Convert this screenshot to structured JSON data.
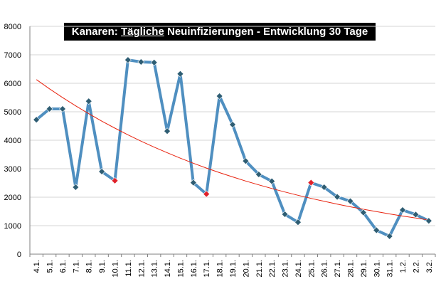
{
  "chart_data": {
    "type": "line",
    "title_parts": [
      "Kanaren: ",
      "Tägliche",
      " Neuinfizierungen - Entwicklung 30 Tage"
    ],
    "categories": [
      "4.1.",
      "5.1.",
      "6.1.",
      "7.1.",
      "8.1.",
      "9.1.",
      "10.1.",
      "11.1.",
      "12.1.",
      "13.1.",
      "14.1.",
      "15.1.",
      "16.1.",
      "17.1.",
      "18.1.",
      "19.1.",
      "20.1.",
      "21.1.",
      "22.1.",
      "23.1.",
      "24.1.",
      "25.1.",
      "26.1.",
      "27.1.",
      "28.1.",
      "29.1.",
      "30.1.",
      "31.1.",
      "1.2.",
      "2.2.",
      "3.2."
    ],
    "values": [
      4720,
      5100,
      5100,
      2350,
      5370,
      2900,
      2580,
      6820,
      6750,
      6730,
      4320,
      6330,
      2510,
      2110,
      5550,
      4550,
      3270,
      2800,
      2560,
      1400,
      1120,
      2510,
      2350,
      2010,
      1860,
      1460,
      840,
      630,
      1550,
      1390,
      1170
    ],
    "highlight_indices": [
      6,
      13,
      21
    ],
    "trend": {
      "start": 6130,
      "end": 1200
    },
    "ylim": [
      0,
      8000
    ],
    "yticks": [
      0,
      1000,
      2000,
      3000,
      4000,
      5000,
      6000,
      7000,
      8000
    ],
    "grid": true,
    "legend": "none",
    "colors": {
      "line": "#4f8fc0",
      "marker": "#2e5d73",
      "highlight_marker": "#e0212a",
      "trend": "#e8220e",
      "grid": "#d6d6d6",
      "axis": "#7f7f7f"
    }
  }
}
